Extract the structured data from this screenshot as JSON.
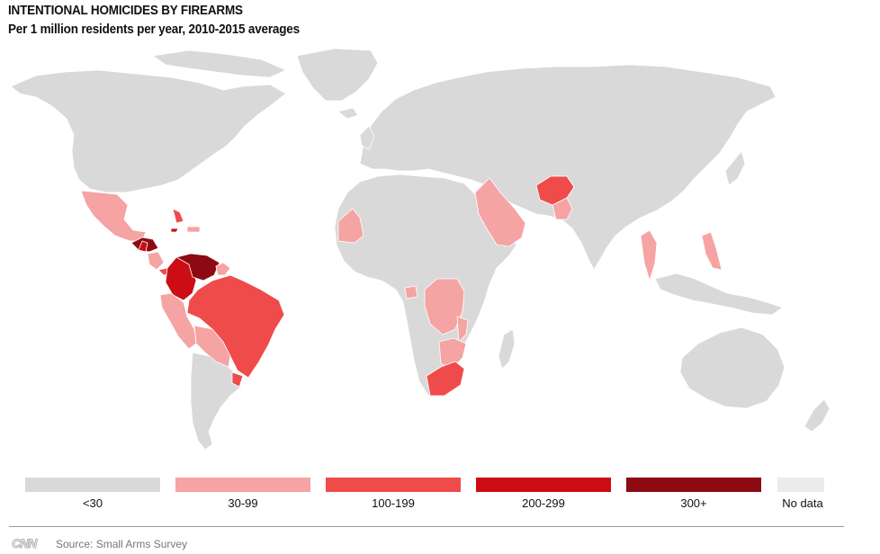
{
  "title": "INTENTIONAL HOMICIDES BY FIREARMS",
  "subtitle": "Per 1 million residents per year, 2010-2015 averages",
  "legend": [
    {
      "label": "<30",
      "color": "#d9d9d9"
    },
    {
      "label": "30-99",
      "color": "#f5a3a3"
    },
    {
      "label": "100-199",
      "color": "#ef4b4b"
    },
    {
      "label": "200-299",
      "color": "#cc0d14"
    },
    {
      "label": "300+",
      "color": "#8e0a12"
    },
    {
      "label": "No data",
      "color": "#ececec"
    }
  ],
  "footer": {
    "logo": "CNN",
    "source": "Source: Small Arms Survey"
  }
}
